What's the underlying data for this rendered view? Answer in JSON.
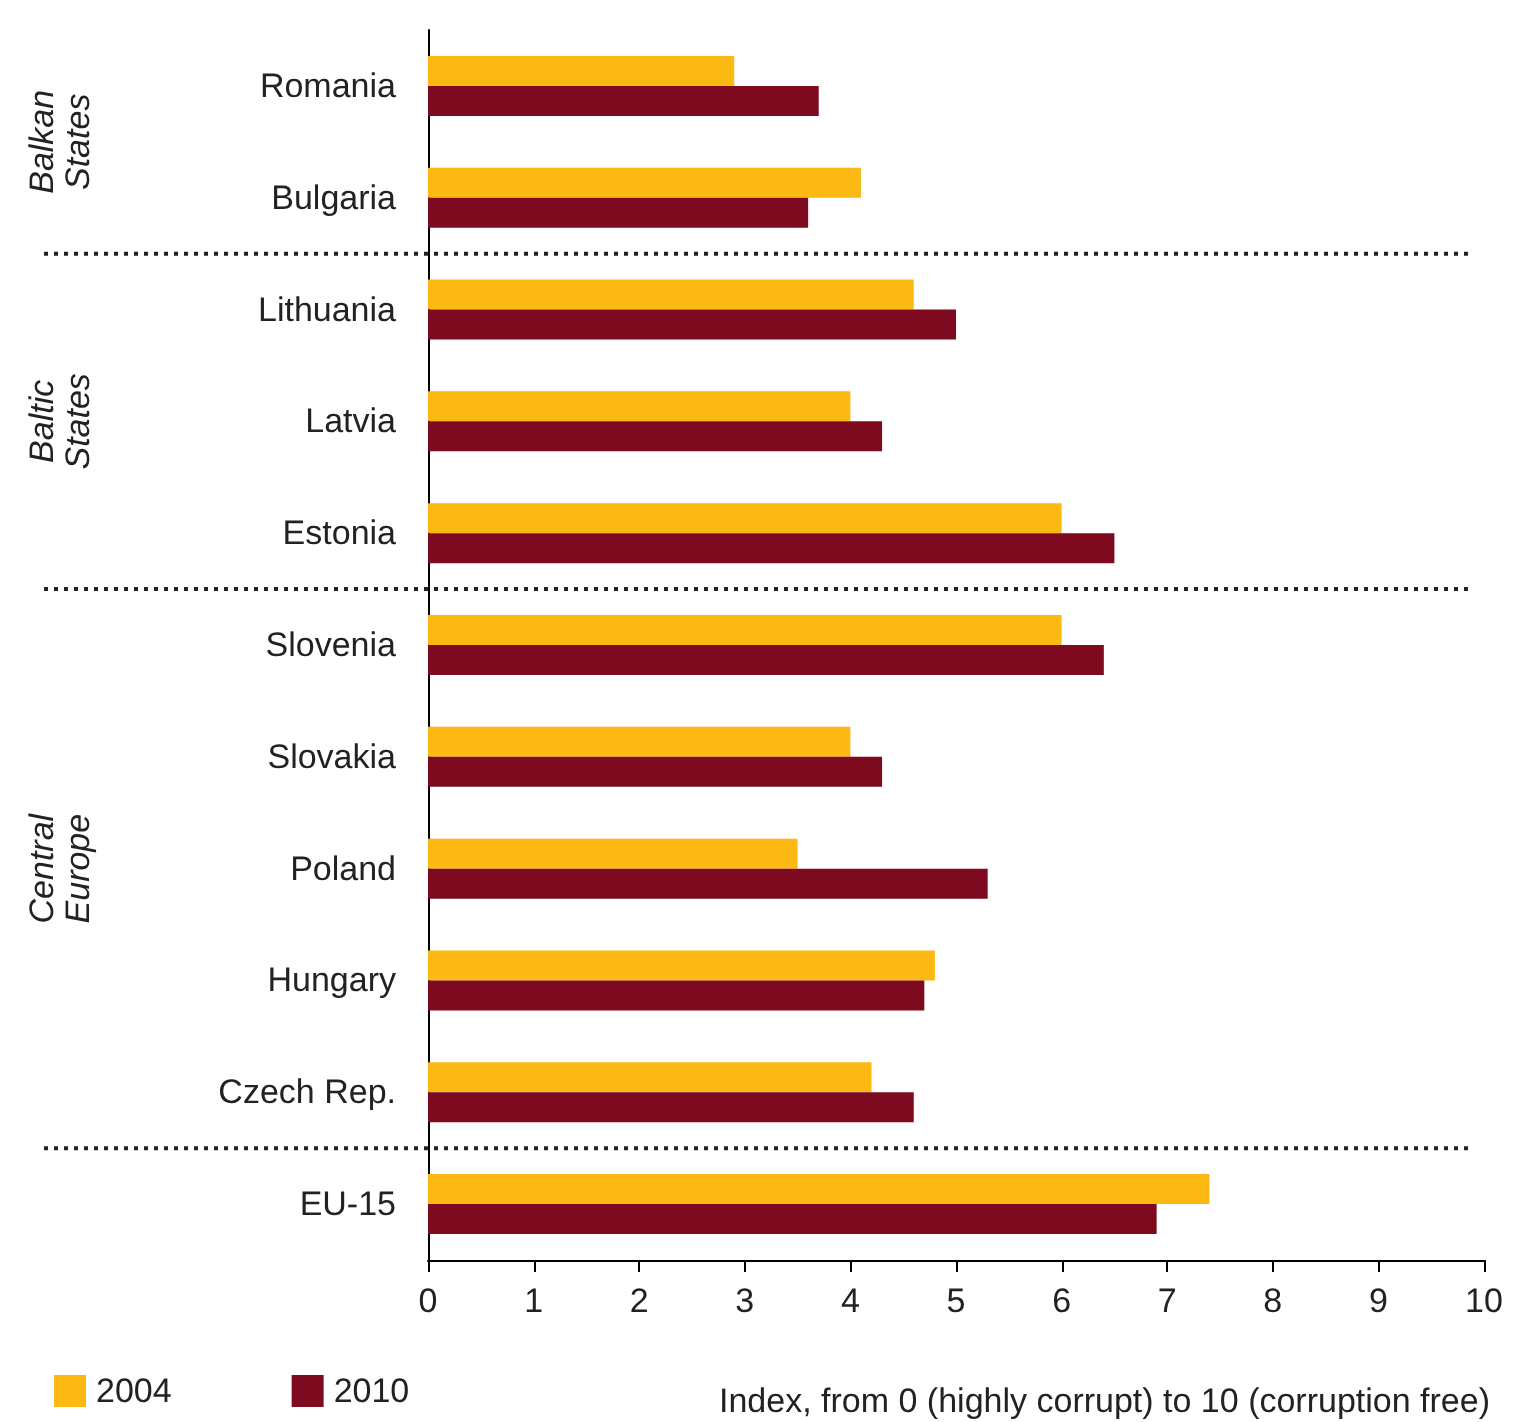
{
  "chart_data": {
    "type": "bar",
    "orientation": "horizontal",
    "categories": [
      "Romania",
      "Bulgaria",
      "Lithuania",
      "Latvia",
      "Estonia",
      "Slovenia",
      "Slovakia",
      "Poland",
      "Hungary",
      "Czech Rep.",
      "EU-15"
    ],
    "series": [
      {
        "name": "2004",
        "color": "#fdb913",
        "values": [
          2.9,
          4.1,
          4.6,
          4.0,
          6.0,
          6.0,
          4.0,
          3.5,
          4.8,
          4.2,
          7.4
        ]
      },
      {
        "name": "2010",
        "color": "#7d0a1e",
        "values": [
          3.7,
          3.6,
          5.0,
          4.3,
          6.5,
          6.4,
          4.3,
          5.3,
          4.7,
          4.6,
          6.9
        ]
      }
    ],
    "xlabel": "Index, from 0 (highly corrupt) to 10 (corruption free)",
    "xlim": [
      0,
      10
    ],
    "xticks": [
      0,
      1,
      2,
      3,
      4,
      5,
      6,
      7,
      8,
      9,
      10
    ],
    "annotations": [
      "Balkan States",
      "Baltic States",
      "Central Europe"
    ],
    "grid": false,
    "legend": "bottom left"
  }
}
